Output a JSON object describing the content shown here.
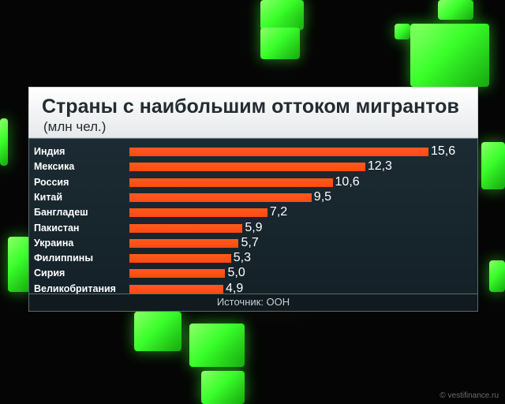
{
  "chart_data": {
    "type": "bar",
    "orientation": "horizontal",
    "title": "Страны с наибольшим оттоком мигрантов",
    "subtitle": "(млн чел.)",
    "categories": [
      "Индия",
      "Мексика",
      "Россия",
      "Китай",
      "Бангладеш",
      "Пакистан",
      "Украина",
      "Филиппины",
      "Сирия",
      "Великобритания"
    ],
    "values": [
      15.6,
      12.3,
      10.6,
      9.5,
      7.2,
      5.9,
      5.7,
      5.3,
      5.0,
      4.9
    ],
    "value_labels": [
      "15,6",
      "12,3",
      "10,6",
      "9,5",
      "7,2",
      "5,9",
      "5,7",
      "5,3",
      "5,0",
      "4,9"
    ],
    "xlabel": "",
    "ylabel": "",
    "grid": false,
    "legend": "none",
    "bar_color": "#ff4a12"
  },
  "footer": {
    "source": "Источник: ООН"
  },
  "watermark": "© vestifinance.ru",
  "colors": {
    "accent_green": "#39ff2a",
    "panel_dark": "#182830",
    "title_bg": "#f2f4f5"
  }
}
